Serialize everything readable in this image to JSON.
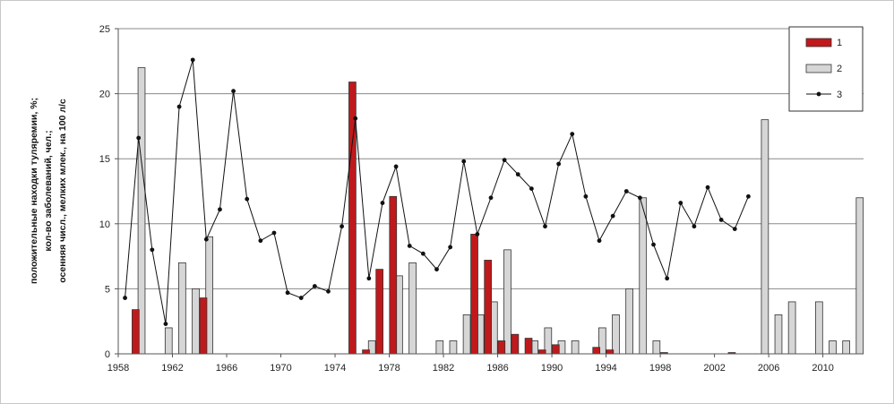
{
  "chart_data": {
    "type": "bar",
    "ylabel_lines": [
      "положительные находки туляремии, %;",
      "кол-во заболеваний, чел.;",
      "осенняя числ., мелких млек., на 100 л/с"
    ],
    "ylim": [
      0,
      25
    ],
    "yticks": [
      "0",
      "5",
      "10",
      "15",
      "20",
      "25"
    ],
    "xlim": [
      1957.5,
      2012.5
    ],
    "xticks": [
      "1958",
      "1962",
      "1966",
      "1970",
      "1974",
      "1978",
      "1982",
      "1986",
      "1990",
      "1994",
      "1998",
      "2002",
      "2006",
      "2010"
    ],
    "grid": "horizontal",
    "legend_position": "top-right",
    "series": [
      {
        "name": "1",
        "kind": "bar",
        "color": "#c0191c",
        "x": [
          1959,
          1964,
          1975,
          1976,
          1977,
          1978,
          1984,
          1985,
          1986,
          1987,
          1988,
          1989,
          1990,
          1993,
          1994,
          1998,
          2003
        ],
        "values": [
          3.4,
          4.3,
          20.9,
          0.3,
          6.5,
          12.1,
          9.2,
          7.2,
          1.0,
          1.5,
          1.2,
          0.3,
          0.7,
          0.5,
          0.3,
          0.1,
          0.1
        ]
      },
      {
        "name": "2",
        "kind": "bar",
        "color": "#d6d6d6",
        "x": [
          1959,
          1961,
          1962,
          1963,
          1964,
          1976,
          1978,
          1979,
          1981,
          1982,
          1983,
          1984,
          1985,
          1986,
          1988,
          1989,
          1990,
          1991,
          1993,
          1994,
          1995,
          1996,
          1997,
          2005,
          2006,
          2007,
          2009,
          2010,
          2011,
          2012
        ],
        "values": [
          22,
          2,
          7,
          5,
          9,
          1,
          6,
          7,
          1,
          1,
          3,
          3,
          4,
          8,
          1,
          2,
          1,
          1,
          2,
          3,
          5,
          12,
          1,
          18,
          3,
          4,
          4,
          1,
          1,
          12
        ]
      },
      {
        "name": "3",
        "kind": "line",
        "color": "#111111",
        "x": [
          1958,
          1959,
          1960,
          1961,
          1962,
          1963,
          1964,
          1965,
          1966,
          1967,
          1968,
          1969,
          1970,
          1971,
          1972,
          1973,
          1974,
          1975,
          1976,
          1977,
          1978,
          1979,
          1980,
          1981,
          1982,
          1983,
          1984,
          1985,
          1986,
          1987,
          1988,
          1989,
          1990,
          1991,
          1992,
          1993,
          1994,
          1995,
          1996,
          1997,
          1998,
          1999,
          2000,
          2001,
          2002,
          2003,
          2004
        ],
        "values": [
          4.3,
          16.6,
          8.0,
          2.3,
          19.0,
          22.6,
          8.8,
          11.1,
          20.2,
          11.9,
          8.7,
          9.3,
          4.7,
          4.3,
          5.2,
          4.8,
          9.8,
          18.1,
          5.8,
          11.6,
          14.4,
          8.3,
          7.7,
          6.5,
          8.2,
          14.8,
          9.2,
          12.0,
          14.9,
          13.8,
          12.7,
          9.8,
          14.6,
          16.9,
          12.1,
          8.7,
          10.6,
          12.5,
          12.0,
          8.4,
          5.8,
          11.6,
          9.8,
          12.8,
          10.3,
          9.6,
          12.1
        ]
      }
    ]
  }
}
